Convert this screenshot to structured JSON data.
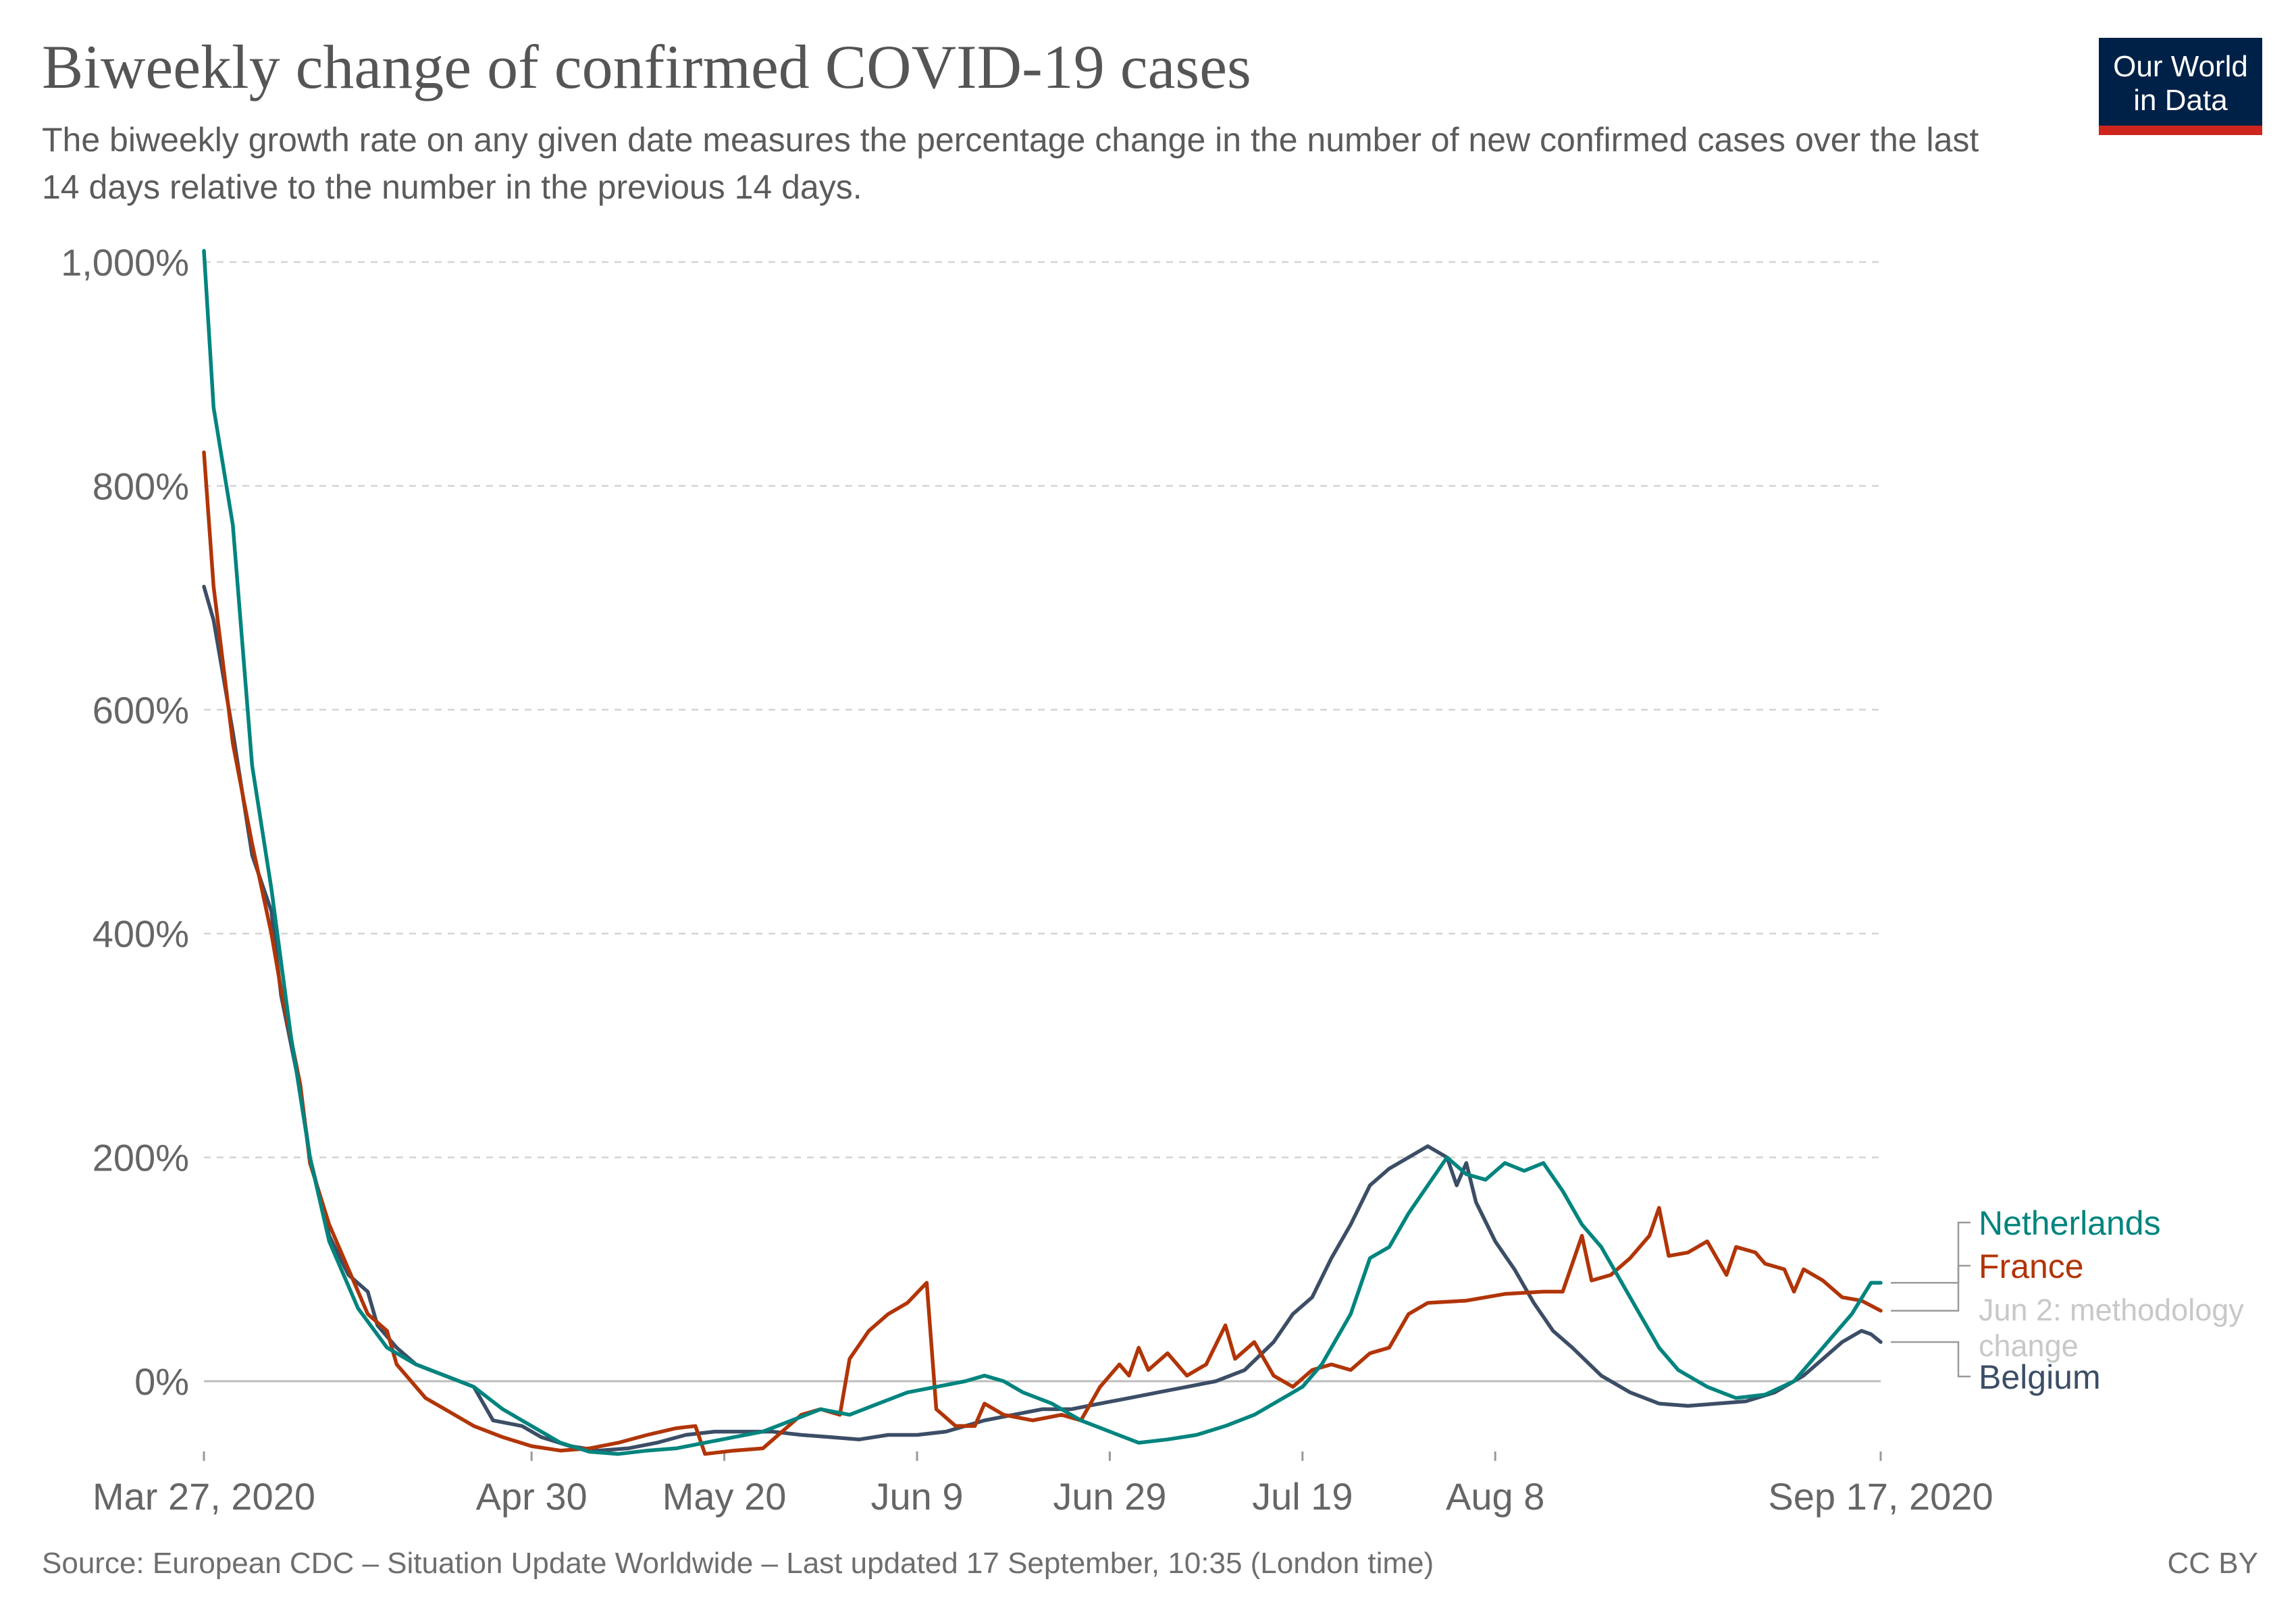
{
  "header": {
    "title": "Biweekly change of confirmed COVID-19 cases",
    "subtitle": "The biweekly growth rate on any given date measures the percentage change in the number of new confirmed cases over the last 14 days relative to the number in the previous 14 days."
  },
  "logo": {
    "line1": "Our World",
    "line2": "in Data",
    "background": "#002147",
    "accent": "#ce261e"
  },
  "footer": {
    "source": "Source: European CDC – Situation Update Worldwide – Last updated 17 September, 10:35 (London time)",
    "license": "CC BY"
  },
  "chart_data": {
    "type": "line",
    "x_start": "2020-03-27",
    "x_end": "2020-09-17",
    "ylim": [
      -80,
      1000
    ],
    "grid": true,
    "y_ticks": [
      {
        "value": 0,
        "label": "0%"
      },
      {
        "value": 200,
        "label": "200%"
      },
      {
        "value": 400,
        "label": "400%"
      },
      {
        "value": 600,
        "label": "600%"
      },
      {
        "value": 800,
        "label": "800%"
      },
      {
        "value": 1000,
        "label": "1,000%"
      }
    ],
    "x_ticks": [
      {
        "date": "2020-03-27",
        "label": "Mar 27, 2020"
      },
      {
        "date": "2020-04-30",
        "label": "Apr 30"
      },
      {
        "date": "2020-05-20",
        "label": "May 20"
      },
      {
        "date": "2020-06-09",
        "label": "Jun 9"
      },
      {
        "date": "2020-06-29",
        "label": "Jun 29"
      },
      {
        "date": "2020-07-19",
        "label": "Jul 19"
      },
      {
        "date": "2020-08-08",
        "label": "Aug 8"
      },
      {
        "date": "2020-09-17",
        "label": "Sep 17, 2020"
      }
    ],
    "annotation": {
      "text": "Jun 2: methodology change",
      "line1": "Jun 2: methodology",
      "line2": "change",
      "color": "#c8c8c8"
    },
    "series": [
      {
        "name": "Netherlands",
        "color": "#00847e",
        "points": [
          [
            "2020-03-27",
            1010
          ],
          [
            "2020-03-28",
            870
          ],
          [
            "2020-03-30",
            765
          ],
          [
            "2020-04-01",
            550
          ],
          [
            "2020-04-03",
            440
          ],
          [
            "2020-04-05",
            310
          ],
          [
            "2020-04-07",
            200
          ],
          [
            "2020-04-09",
            125
          ],
          [
            "2020-04-12",
            65
          ],
          [
            "2020-04-15",
            30
          ],
          [
            "2020-04-18",
            15
          ],
          [
            "2020-04-21",
            5
          ],
          [
            "2020-04-24",
            -5
          ],
          [
            "2020-04-27",
            -25
          ],
          [
            "2020-04-30",
            -40
          ],
          [
            "2020-05-03",
            -55
          ],
          [
            "2020-05-06",
            -63
          ],
          [
            "2020-05-09",
            -65
          ],
          [
            "2020-05-12",
            -62
          ],
          [
            "2020-05-15",
            -60
          ],
          [
            "2020-05-18",
            -55
          ],
          [
            "2020-05-21",
            -50
          ],
          [
            "2020-05-24",
            -45
          ],
          [
            "2020-05-27",
            -35
          ],
          [
            "2020-05-30",
            -25
          ],
          [
            "2020-06-02",
            -30
          ],
          [
            "2020-06-05",
            -20
          ],
          [
            "2020-06-08",
            -10
          ],
          [
            "2020-06-11",
            -5
          ],
          [
            "2020-06-14",
            0
          ],
          [
            "2020-06-16",
            5
          ],
          [
            "2020-06-18",
            0
          ],
          [
            "2020-06-20",
            -10
          ],
          [
            "2020-06-23",
            -20
          ],
          [
            "2020-06-26",
            -35
          ],
          [
            "2020-06-29",
            -45
          ],
          [
            "2020-07-02",
            -55
          ],
          [
            "2020-07-05",
            -52
          ],
          [
            "2020-07-08",
            -48
          ],
          [
            "2020-07-11",
            -40
          ],
          [
            "2020-07-14",
            -30
          ],
          [
            "2020-07-17",
            -15
          ],
          [
            "2020-07-19",
            -5
          ],
          [
            "2020-07-21",
            15
          ],
          [
            "2020-07-24",
            60
          ],
          [
            "2020-07-26",
            110
          ],
          [
            "2020-07-28",
            120
          ],
          [
            "2020-07-30",
            150
          ],
          [
            "2020-08-01",
            175
          ],
          [
            "2020-08-03",
            200
          ],
          [
            "2020-08-05",
            185
          ],
          [
            "2020-08-07",
            180
          ],
          [
            "2020-08-09",
            195
          ],
          [
            "2020-08-11",
            188
          ],
          [
            "2020-08-13",
            195
          ],
          [
            "2020-08-15",
            170
          ],
          [
            "2020-08-17",
            140
          ],
          [
            "2020-08-19",
            120
          ],
          [
            "2020-08-21",
            90
          ],
          [
            "2020-08-23",
            60
          ],
          [
            "2020-08-25",
            30
          ],
          [
            "2020-08-27",
            10
          ],
          [
            "2020-08-30",
            -5
          ],
          [
            "2020-09-02",
            -15
          ],
          [
            "2020-09-05",
            -12
          ],
          [
            "2020-09-08",
            0
          ],
          [
            "2020-09-10",
            20
          ],
          [
            "2020-09-12",
            40
          ],
          [
            "2020-09-14",
            60
          ],
          [
            "2020-09-16",
            88
          ],
          [
            "2020-09-17",
            88
          ]
        ]
      },
      {
        "name": "France",
        "color": "#b13507",
        "points": [
          [
            "2020-03-27",
            830
          ],
          [
            "2020-03-28",
            710
          ],
          [
            "2020-03-30",
            570
          ],
          [
            "2020-04-01",
            480
          ],
          [
            "2020-04-03",
            400
          ],
          [
            "2020-04-04",
            350
          ],
          [
            "2020-04-06",
            265
          ],
          [
            "2020-04-07",
            195
          ],
          [
            "2020-04-09",
            140
          ],
          [
            "2020-04-11",
            100
          ],
          [
            "2020-04-13",
            60
          ],
          [
            "2020-04-15",
            45
          ],
          [
            "2020-04-16",
            15
          ],
          [
            "2020-04-17",
            5
          ],
          [
            "2020-04-19",
            -15
          ],
          [
            "2020-04-21",
            -25
          ],
          [
            "2020-04-24",
            -40
          ],
          [
            "2020-04-27",
            -50
          ],
          [
            "2020-04-30",
            -58
          ],
          [
            "2020-05-03",
            -62
          ],
          [
            "2020-05-06",
            -60
          ],
          [
            "2020-05-09",
            -55
          ],
          [
            "2020-05-12",
            -48
          ],
          [
            "2020-05-15",
            -42
          ],
          [
            "2020-05-17",
            -40
          ],
          [
            "2020-05-18",
            -65
          ],
          [
            "2020-05-21",
            -62
          ],
          [
            "2020-05-24",
            -60
          ],
          [
            "2020-05-26",
            -45
          ],
          [
            "2020-05-28",
            -30
          ],
          [
            "2020-05-30",
            -25
          ],
          [
            "2020-06-01",
            -30
          ],
          [
            "2020-06-02",
            20
          ],
          [
            "2020-06-04",
            45
          ],
          [
            "2020-06-06",
            60
          ],
          [
            "2020-06-08",
            70
          ],
          [
            "2020-06-10",
            88
          ],
          [
            "2020-06-11",
            -25
          ],
          [
            "2020-06-13",
            -40
          ],
          [
            "2020-06-15",
            -40
          ],
          [
            "2020-06-16",
            -20
          ],
          [
            "2020-06-18",
            -30
          ],
          [
            "2020-06-21",
            -35
          ],
          [
            "2020-06-24",
            -30
          ],
          [
            "2020-06-26",
            -35
          ],
          [
            "2020-06-28",
            -5
          ],
          [
            "2020-06-30",
            15
          ],
          [
            "2020-07-01",
            5
          ],
          [
            "2020-07-02",
            30
          ],
          [
            "2020-07-03",
            10
          ],
          [
            "2020-07-05",
            25
          ],
          [
            "2020-07-07",
            5
          ],
          [
            "2020-07-09",
            15
          ],
          [
            "2020-07-11",
            50
          ],
          [
            "2020-07-12",
            20
          ],
          [
            "2020-07-14",
            35
          ],
          [
            "2020-07-16",
            5
          ],
          [
            "2020-07-18",
            -5
          ],
          [
            "2020-07-20",
            10
          ],
          [
            "2020-07-22",
            15
          ],
          [
            "2020-07-24",
            10
          ],
          [
            "2020-07-26",
            25
          ],
          [
            "2020-07-28",
            30
          ],
          [
            "2020-07-30",
            60
          ],
          [
            "2020-08-01",
            70
          ],
          [
            "2020-08-05",
            72
          ],
          [
            "2020-08-09",
            78
          ],
          [
            "2020-08-13",
            80
          ],
          [
            "2020-08-15",
            80
          ],
          [
            "2020-08-17",
            130
          ],
          [
            "2020-08-18",
            90
          ],
          [
            "2020-08-20",
            95
          ],
          [
            "2020-08-22",
            110
          ],
          [
            "2020-08-24",
            130
          ],
          [
            "2020-08-25",
            155
          ],
          [
            "2020-08-26",
            112
          ],
          [
            "2020-08-28",
            115
          ],
          [
            "2020-08-30",
            125
          ],
          [
            "2020-09-01",
            95
          ],
          [
            "2020-09-02",
            120
          ],
          [
            "2020-09-04",
            115
          ],
          [
            "2020-09-05",
            105
          ],
          [
            "2020-09-07",
            100
          ],
          [
            "2020-09-08",
            80
          ],
          [
            "2020-09-09",
            100
          ],
          [
            "2020-09-11",
            90
          ],
          [
            "2020-09-13",
            75
          ],
          [
            "2020-09-15",
            72
          ],
          [
            "2020-09-17",
            63
          ]
        ]
      },
      {
        "name": "Belgium",
        "color": "#3c4e66",
        "points": [
          [
            "2020-03-27",
            710
          ],
          [
            "2020-03-28",
            680
          ],
          [
            "2020-03-30",
            580
          ],
          [
            "2020-04-01",
            470
          ],
          [
            "2020-04-03",
            420
          ],
          [
            "2020-04-04",
            345
          ],
          [
            "2020-04-06",
            260
          ],
          [
            "2020-04-07",
            200
          ],
          [
            "2020-04-09",
            130
          ],
          [
            "2020-04-11",
            95
          ],
          [
            "2020-04-13",
            80
          ],
          [
            "2020-04-14",
            50
          ],
          [
            "2020-04-16",
            30
          ],
          [
            "2020-04-18",
            15
          ],
          [
            "2020-04-21",
            5
          ],
          [
            "2020-04-24",
            -5
          ],
          [
            "2020-04-26",
            -35
          ],
          [
            "2020-04-29",
            -40
          ],
          [
            "2020-05-01",
            -50
          ],
          [
            "2020-05-04",
            -58
          ],
          [
            "2020-05-07",
            -62
          ],
          [
            "2020-05-10",
            -60
          ],
          [
            "2020-05-13",
            -55
          ],
          [
            "2020-05-16",
            -48
          ],
          [
            "2020-05-19",
            -45
          ],
          [
            "2020-05-22",
            -45
          ],
          [
            "2020-05-25",
            -45
          ],
          [
            "2020-05-28",
            -48
          ],
          [
            "2020-05-31",
            -50
          ],
          [
            "2020-06-03",
            -52
          ],
          [
            "2020-06-06",
            -48
          ],
          [
            "2020-06-09",
            -48
          ],
          [
            "2020-06-12",
            -45
          ],
          [
            "2020-06-14",
            -40
          ],
          [
            "2020-06-16",
            -35
          ],
          [
            "2020-06-19",
            -30
          ],
          [
            "2020-06-22",
            -25
          ],
          [
            "2020-06-25",
            -25
          ],
          [
            "2020-06-28",
            -20
          ],
          [
            "2020-07-01",
            -15
          ],
          [
            "2020-07-04",
            -10
          ],
          [
            "2020-07-07",
            -5
          ],
          [
            "2020-07-10",
            0
          ],
          [
            "2020-07-13",
            10
          ],
          [
            "2020-07-16",
            35
          ],
          [
            "2020-07-18",
            60
          ],
          [
            "2020-07-20",
            75
          ],
          [
            "2020-07-22",
            110
          ],
          [
            "2020-07-24",
            140
          ],
          [
            "2020-07-26",
            175
          ],
          [
            "2020-07-28",
            190
          ],
          [
            "2020-07-30",
            200
          ],
          [
            "2020-08-01",
            210
          ],
          [
            "2020-08-03",
            200
          ],
          [
            "2020-08-04",
            175
          ],
          [
            "2020-08-05",
            195
          ],
          [
            "2020-08-06",
            160
          ],
          [
            "2020-08-08",
            125
          ],
          [
            "2020-08-10",
            100
          ],
          [
            "2020-08-12",
            70
          ],
          [
            "2020-08-14",
            45
          ],
          [
            "2020-08-16",
            30
          ],
          [
            "2020-08-19",
            5
          ],
          [
            "2020-08-22",
            -10
          ],
          [
            "2020-08-25",
            -20
          ],
          [
            "2020-08-28",
            -22
          ],
          [
            "2020-08-31",
            -20
          ],
          [
            "2020-09-03",
            -18
          ],
          [
            "2020-09-06",
            -10
          ],
          [
            "2020-09-09",
            5
          ],
          [
            "2020-09-11",
            20
          ],
          [
            "2020-09-13",
            35
          ],
          [
            "2020-09-15",
            45
          ],
          [
            "2020-09-16",
            42
          ],
          [
            "2020-09-17",
            35
          ]
        ]
      }
    ]
  }
}
